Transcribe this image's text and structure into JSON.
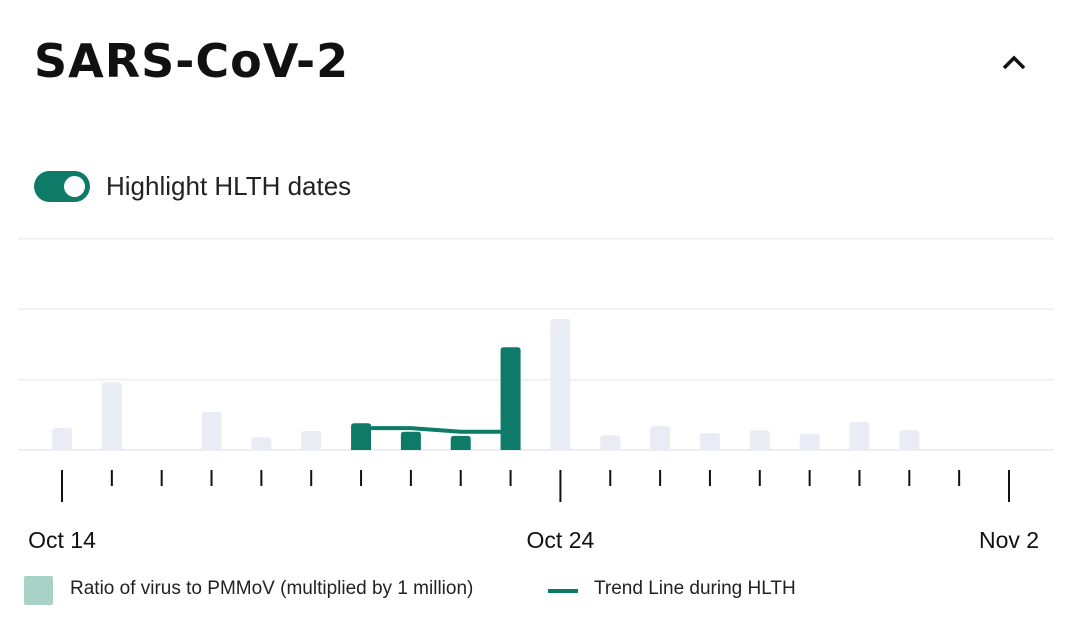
{
  "title": "SARS-CoV-2",
  "toggle": {
    "label": "Highlight HLTH dates",
    "on": true
  },
  "colors": {
    "highlight": "#0e7a68",
    "bar": "#e9ecf4",
    "legend_swatch": "#a9d2c7",
    "grid": "#eceef2"
  },
  "chart_data": {
    "type": "bar",
    "title": "SARS-CoV-2",
    "xlabel": "",
    "ylabel": "",
    "ylim": [
      0,
      3
    ],
    "y_gridlines": [
      0,
      1,
      2,
      3
    ],
    "x_tick_labels": [
      {
        "index": 0,
        "label": "Oct 14"
      },
      {
        "index": 10,
        "label": "Oct 24"
      },
      {
        "index": 19,
        "label": "Nov 2"
      }
    ],
    "categories": [
      "Oct 14",
      "Oct 15",
      "Oct 16",
      "Oct 17",
      "Oct 18",
      "Oct 19",
      "Oct 20",
      "Oct 21",
      "Oct 22",
      "Oct 23",
      "Oct 24",
      "Oct 25",
      "Oct 26",
      "Oct 27",
      "Oct 28",
      "Oct 29",
      "Oct 30",
      "Oct 31",
      "Nov 1",
      "Nov 2"
    ],
    "values": [
      0.31,
      0.96,
      null,
      0.54,
      0.18,
      0.27,
      0.38,
      0.26,
      0.2,
      1.46,
      1.86,
      0.21,
      0.34,
      0.24,
      0.28,
      0.23,
      0.4,
      0.28,
      null,
      null
    ],
    "highlighted": [
      false,
      false,
      false,
      false,
      false,
      false,
      true,
      true,
      true,
      true,
      false,
      false,
      false,
      false,
      false,
      false,
      false,
      false,
      false,
      false
    ],
    "trend": {
      "name": "Trend Line during HLTH",
      "x_indices": [
        6,
        7,
        8,
        9
      ],
      "values": [
        0.31,
        0.31,
        0.26,
        0.26
      ]
    },
    "legend": [
      "Ratio of virus to PMMoV (multiplied by 1 million)",
      "Trend Line during HLTH"
    ],
    "legend_position": "bottom-left"
  }
}
